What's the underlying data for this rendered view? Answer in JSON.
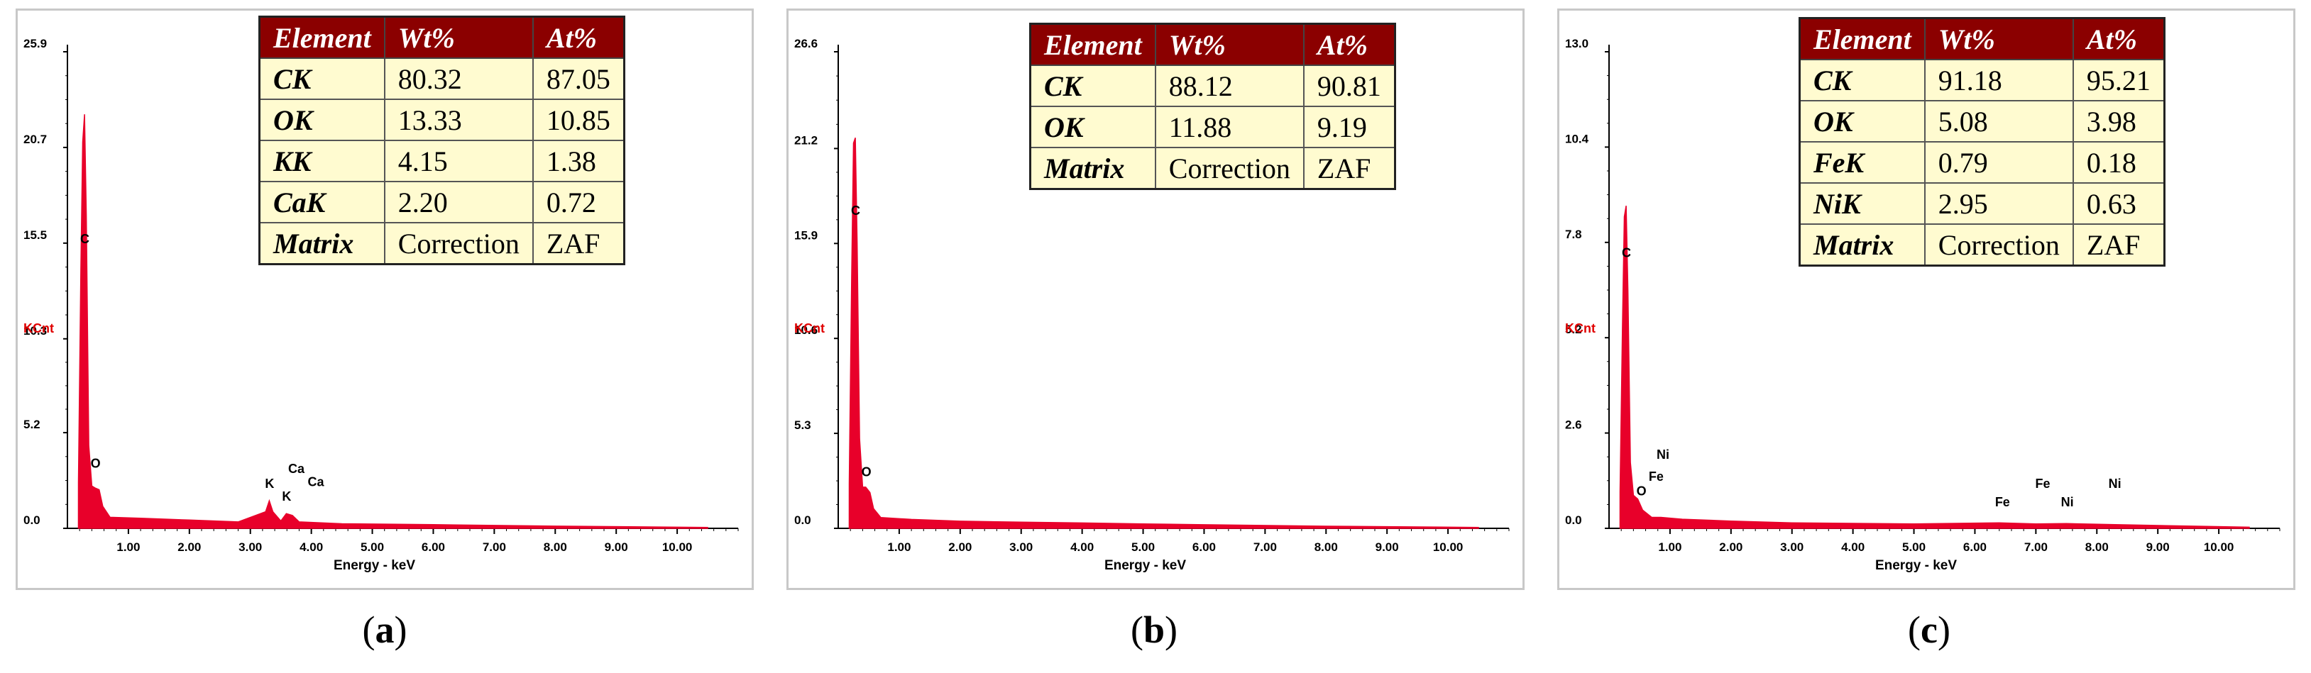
{
  "chart_data": [
    {
      "type": "bar",
      "label": "a",
      "ylabel": "KCnt",
      "xlabel": "Energy - keV",
      "yticks": [
        "0.0",
        "5.2",
        "10.3",
        "15.5",
        "20.7",
        "25.9"
      ],
      "ylim": [
        0,
        25.9
      ],
      "xticks": [
        "1.00",
        "2.00",
        "3.00",
        "4.00",
        "5.00",
        "6.00",
        "7.00",
        "8.00",
        "9.00",
        "10.00"
      ],
      "xlim": [
        0,
        11
      ],
      "spectrum": [
        [
          0.18,
          2.5
        ],
        [
          0.22,
          14
        ],
        [
          0.25,
          21
        ],
        [
          0.28,
          22.5
        ],
        [
          0.31,
          17
        ],
        [
          0.35,
          4.5
        ],
        [
          0.4,
          2.3
        ],
        [
          0.45,
          2.2
        ],
        [
          0.52,
          2.1
        ],
        [
          0.58,
          1.2
        ],
        [
          0.7,
          0.6
        ],
        [
          1.2,
          0.55
        ],
        [
          2.0,
          0.45
        ],
        [
          2.8,
          0.35
        ],
        [
          3.25,
          0.9
        ],
        [
          3.31,
          1.5
        ],
        [
          3.37,
          0.9
        ],
        [
          3.5,
          0.4
        ],
        [
          3.59,
          0.8
        ],
        [
          3.69,
          0.7
        ],
        [
          3.8,
          0.35
        ],
        [
          4.5,
          0.25
        ],
        [
          6.0,
          0.2
        ],
        [
          8.0,
          0.12
        ],
        [
          10.5,
          0.05
        ]
      ],
      "peak_labels": [
        {
          "text": "C",
          "x": 0.28,
          "y": 15.5
        },
        {
          "text": "O",
          "x": 0.45,
          "y": 3.3
        },
        {
          "text": "K",
          "x": 3.31,
          "y": 2.2
        },
        {
          "text": "K",
          "x": 3.59,
          "y": 1.5
        },
        {
          "text": "Ca",
          "x": 3.69,
          "y": 3.0
        },
        {
          "text": "Ca",
          "x": 4.01,
          "y": 2.3
        }
      ],
      "table": {
        "headers": [
          "Element",
          "Wt%",
          "At%"
        ],
        "rows": [
          [
            "CK",
            "80.32",
            "87.05"
          ],
          [
            "OK",
            "13.33",
            "10.85"
          ],
          [
            "KK",
            "4.15",
            "1.38"
          ],
          [
            "CaK",
            "2.20",
            "0.72"
          ],
          [
            "Matrix",
            "Correction",
            "ZAF"
          ]
        ]
      }
    },
    {
      "type": "bar",
      "label": "b",
      "ylabel": "KCnt",
      "xlabel": "Energy - keV",
      "yticks": [
        "0.0",
        "5.3",
        "10.6",
        "15.9",
        "21.2",
        "26.6"
      ],
      "ylim": [
        0,
        26.6
      ],
      "xticks": [
        "1.00",
        "2.00",
        "3.00",
        "4.00",
        "5.00",
        "6.00",
        "7.00",
        "8.00",
        "9.00",
        "10.00"
      ],
      "xlim": [
        0,
        11
      ],
      "spectrum": [
        [
          0.18,
          2.5
        ],
        [
          0.22,
          14
        ],
        [
          0.25,
          21.5
        ],
        [
          0.28,
          21.8
        ],
        [
          0.31,
          16
        ],
        [
          0.35,
          5
        ],
        [
          0.4,
          2.3
        ],
        [
          0.45,
          2.3
        ],
        [
          0.52,
          2.0
        ],
        [
          0.58,
          1.1
        ],
        [
          0.7,
          0.6
        ],
        [
          1.2,
          0.5
        ],
        [
          2.0,
          0.4
        ],
        [
          3.0,
          0.35
        ],
        [
          4.0,
          0.3
        ],
        [
          5.0,
          0.25
        ],
        [
          6.0,
          0.2
        ],
        [
          8.0,
          0.12
        ],
        [
          10.5,
          0.05
        ]
      ],
      "peak_labels": [
        {
          "text": "C",
          "x": 0.28,
          "y": 17.5
        },
        {
          "text": "O",
          "x": 0.45,
          "y": 2.9
        }
      ],
      "table": {
        "headers": [
          "Element",
          "Wt%",
          "At%"
        ],
        "rows": [
          [
            "CK",
            "88.12",
            "90.81"
          ],
          [
            "OK",
            "11.88",
            "9.19"
          ],
          [
            "Matrix",
            "Correction",
            "ZAF"
          ]
        ]
      }
    },
    {
      "type": "bar",
      "label": "c",
      "ylabel": "KCnt",
      "xlabel": "Energy - keV",
      "yticks": [
        "0.0",
        "2.6",
        "5.2",
        "7.8",
        "10.4",
        "13.0"
      ],
      "ylim": [
        0,
        13.0
      ],
      "xticks": [
        "1.00",
        "2.00",
        "3.00",
        "4.00",
        "5.00",
        "6.00",
        "7.00",
        "8.00",
        "9.00",
        "10.00"
      ],
      "xlim": [
        0,
        11
      ],
      "spectrum": [
        [
          0.18,
          1.0
        ],
        [
          0.22,
          5.5
        ],
        [
          0.25,
          8.5
        ],
        [
          0.28,
          8.8
        ],
        [
          0.31,
          6.5
        ],
        [
          0.35,
          1.8
        ],
        [
          0.4,
          0.9
        ],
        [
          0.47,
          0.8
        ],
        [
          0.55,
          0.5
        ],
        [
          0.7,
          0.3
        ],
        [
          0.85,
          0.3
        ],
        [
          1.2,
          0.25
        ],
        [
          2.0,
          0.2
        ],
        [
          3.0,
          0.15
        ],
        [
          5.0,
          0.12
        ],
        [
          6.4,
          0.15
        ],
        [
          7.0,
          0.12
        ],
        [
          7.5,
          0.13
        ],
        [
          8.3,
          0.1
        ],
        [
          10.5,
          0.03
        ]
      ],
      "peak_labels": [
        {
          "text": "C",
          "x": 0.28,
          "y": 7.4
        },
        {
          "text": "O",
          "x": 0.52,
          "y": 0.9
        },
        {
          "text": "Fe",
          "x": 0.72,
          "y": 1.3
        },
        {
          "text": "Ni",
          "x": 0.85,
          "y": 1.9
        },
        {
          "text": "Fe",
          "x": 6.4,
          "y": 0.6
        },
        {
          "text": "Fe",
          "x": 7.06,
          "y": 1.1
        },
        {
          "text": "Ni",
          "x": 7.48,
          "y": 0.6
        },
        {
          "text": "Ni",
          "x": 8.26,
          "y": 1.1
        }
      ],
      "table": {
        "headers": [
          "Element",
          "Wt%",
          "At%"
        ],
        "rows": [
          [
            "CK",
            "91.18",
            "95.21"
          ],
          [
            "OK",
            "5.08",
            "3.98"
          ],
          [
            "FeK",
            "0.79",
            "0.18"
          ],
          [
            "NiK",
            "2.95",
            "0.63"
          ],
          [
            "Matrix",
            "Correction",
            "ZAF"
          ]
        ]
      }
    }
  ],
  "colors": {
    "spectrum": "#e8002a",
    "ylabel": "#e00000",
    "table_header_bg": "#8b0000",
    "table_body_bg": "#fffbd0"
  }
}
